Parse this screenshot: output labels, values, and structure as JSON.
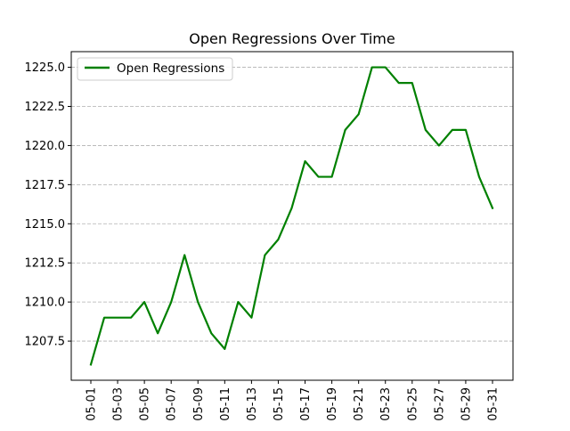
{
  "chart_data": {
    "type": "line",
    "title": "Open Regressions Over Time",
    "xlabel": "",
    "ylabel": "",
    "x": [
      "05-01",
      "05-02",
      "05-03",
      "05-04",
      "05-05",
      "05-06",
      "05-07",
      "05-08",
      "05-09",
      "05-10",
      "05-11",
      "05-12",
      "05-13",
      "05-14",
      "05-15",
      "05-16",
      "05-17",
      "05-18",
      "05-19",
      "05-20",
      "05-21",
      "05-22",
      "05-23",
      "05-24",
      "05-25",
      "05-26",
      "05-27",
      "05-28",
      "05-29",
      "05-30",
      "05-31"
    ],
    "x_tick_labels": [
      "05-01",
      "05-03",
      "05-05",
      "05-07",
      "05-09",
      "05-11",
      "05-13",
      "05-15",
      "05-17",
      "05-19",
      "05-21",
      "05-23",
      "05-25",
      "05-27",
      "05-29",
      "05-31"
    ],
    "y_ticks": [
      1207.5,
      1210.0,
      1212.5,
      1215.0,
      1217.5,
      1220.0,
      1222.5,
      1225.0
    ],
    "y_tick_labels": [
      "1207.5",
      "1210.0",
      "1212.5",
      "1215.0",
      "1217.5",
      "1220.0",
      "1222.5",
      "1225.0"
    ],
    "ylim": [
      1205.0,
      1226.0
    ],
    "grid": "horizontal-dashed",
    "legend": "upper-left",
    "series": [
      {
        "name": "Open Regressions",
        "color": "#008000",
        "values": [
          1206,
          1209,
          1209,
          1209,
          1210,
          1208,
          1210,
          1213,
          1210,
          1208,
          1207,
          1210,
          1209,
          1213,
          1214,
          1216,
          1219,
          1218,
          1218,
          1221,
          1222,
          1225,
          1225,
          1224,
          1224,
          1221,
          1220,
          1221,
          1221,
          1218,
          1216
        ]
      }
    ]
  }
}
